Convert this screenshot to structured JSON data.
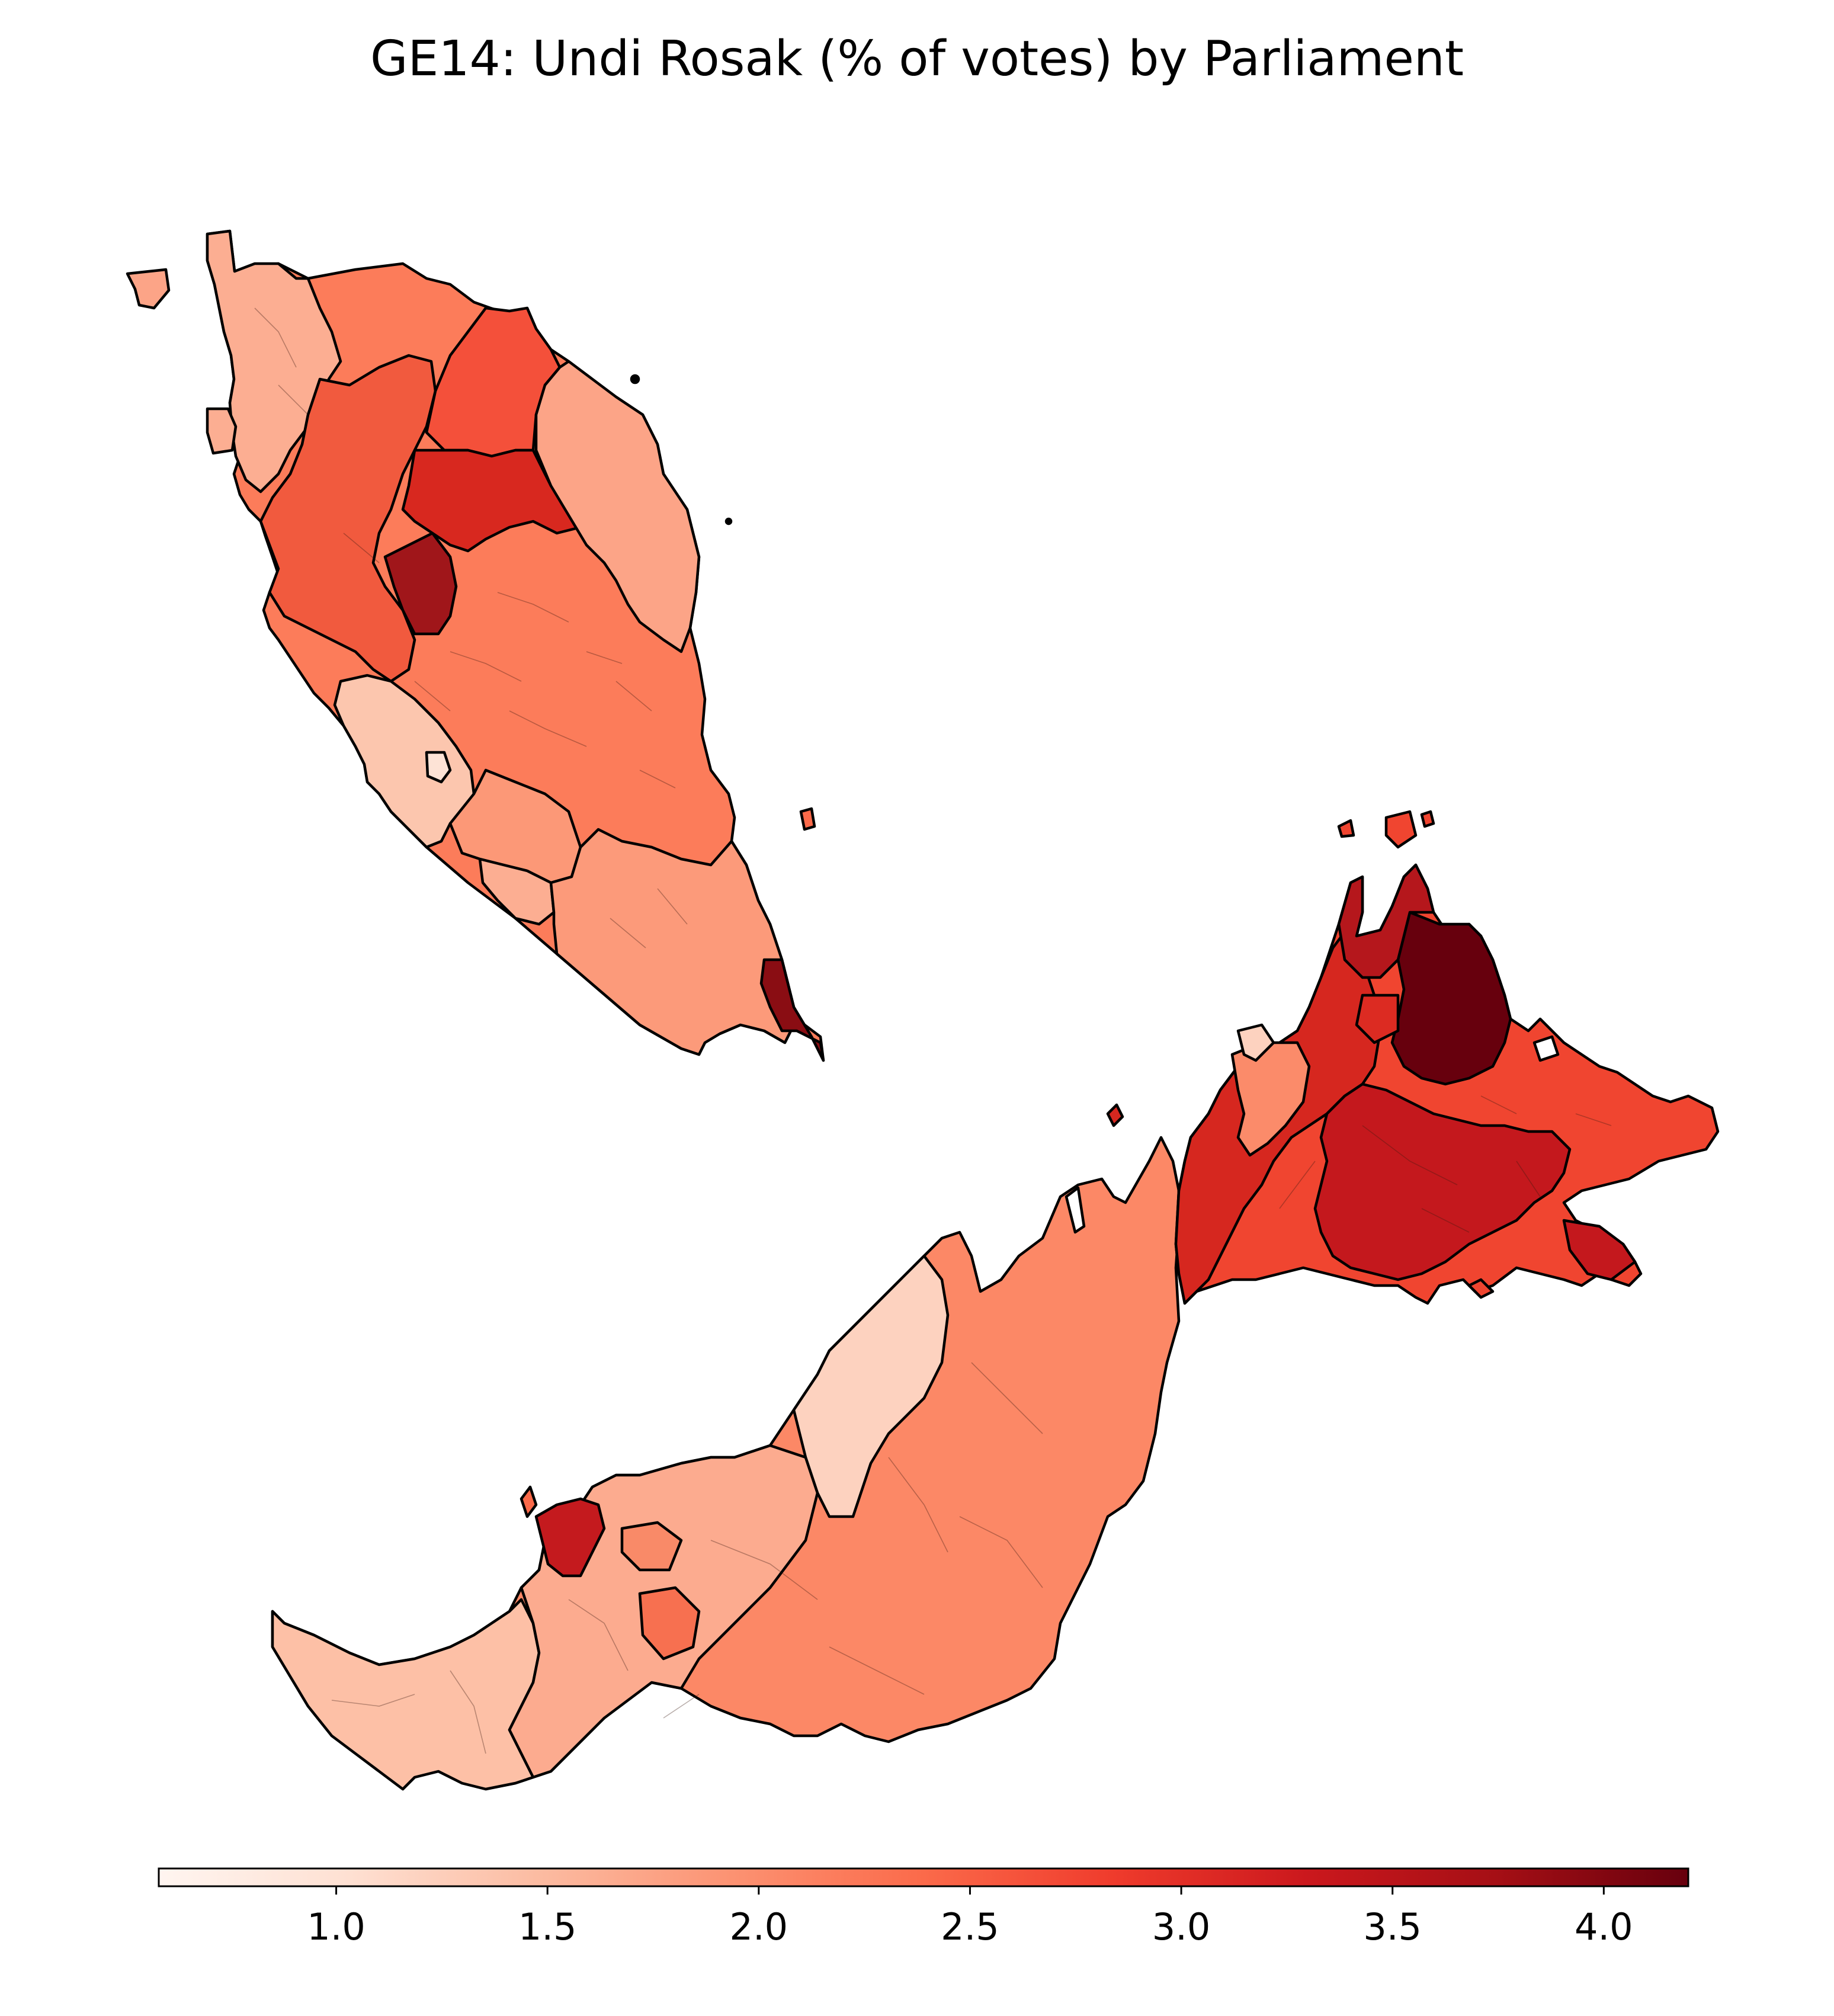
{
  "title": "GE14: Undi Rosak (% of votes) by Parliament",
  "colorbar": {
    "min": 0.58,
    "max": 4.2,
    "ticks": [
      1.0,
      1.5,
      2.0,
      2.5,
      3.0,
      3.5,
      4.0
    ],
    "tick_labels": [
      "1.0",
      "1.5",
      "2.0",
      "2.5",
      "3.0",
      "3.5",
      "4.0"
    ],
    "colormap": "Reds",
    "colors": [
      "#fff5f0",
      "#fee0d2",
      "#fcbba1",
      "#fc9272",
      "#fb6a4a",
      "#ef3b2c",
      "#cb181d",
      "#a50f15",
      "#67000d"
    ]
  },
  "map_data": {
    "type": "choropleth",
    "regions": [
      {
        "region": "Perlis",
        "value": 1.6
      },
      {
        "region": "Kedah",
        "value": 2.4
      },
      {
        "region": "Kelantan",
        "value": 2.6
      },
      {
        "region": "Kelantan (interior)",
        "value": 3.3
      },
      {
        "region": "Terengganu",
        "value": 1.8
      },
      {
        "region": "Penang",
        "value": 1.5
      },
      {
        "region": "Perak",
        "value": 2.2
      },
      {
        "region": "Perak (interior)",
        "value": 3.8
      },
      {
        "region": "Pahang",
        "value": 2.2
      },
      {
        "region": "Selangor",
        "value": 1.3
      },
      {
        "region": "Kuala Lumpur",
        "value": 1.1
      },
      {
        "region": "Negeri Sembilan",
        "value": 1.8
      },
      {
        "region": "Melaka",
        "value": 1.6
      },
      {
        "region": "Johor",
        "value": 2.0
      },
      {
        "region": "Johor (south-east)",
        "value": 3.9
      },
      {
        "region": "Sarawak",
        "value": 2.0
      },
      {
        "region": "Sarawak (south-west)",
        "value": 1.5
      },
      {
        "region": "Sarawak (north coast)",
        "value": 3.4
      },
      {
        "region": "Labuan",
        "value": 3.3
      },
      {
        "region": "Sabah (west coast)",
        "value": 3.0
      },
      {
        "region": "Sabah (interior)",
        "value": 3.4
      },
      {
        "region": "Sabah (north-east)",
        "value": 4.2
      },
      {
        "region": "Sabah (east coast)",
        "value": 3.0
      }
    ]
  }
}
